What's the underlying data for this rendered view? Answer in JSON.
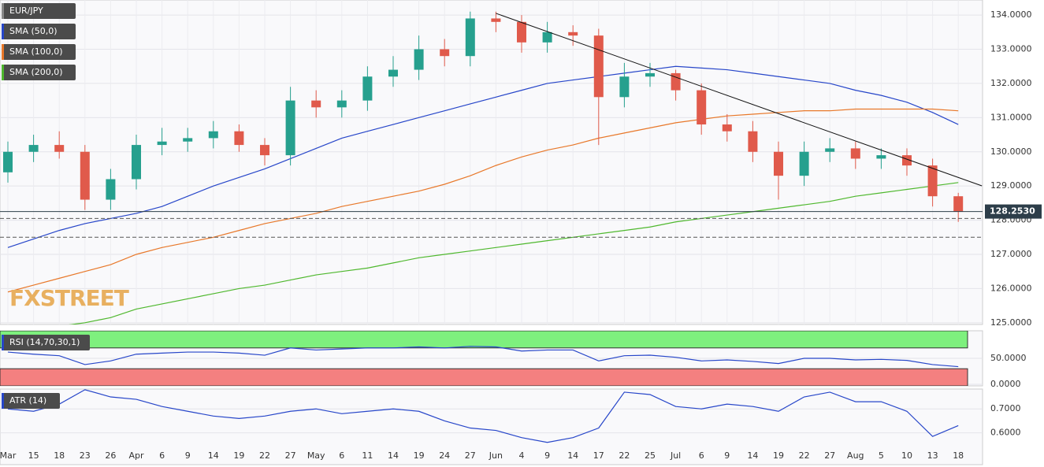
{
  "chart_data": [
    {
      "type": "candlestick",
      "symbol": "EUR/JPY",
      "categories": [
        "Mar",
        "15",
        "18",
        "23",
        "26",
        "Apr",
        "6",
        "9",
        "14",
        "19",
        "22",
        "27",
        "May",
        "6",
        "11",
        "14",
        "19",
        "24",
        "27",
        "Jun",
        "4",
        "9",
        "14",
        "17",
        "22",
        "25",
        "Jul",
        "6",
        "9",
        "14",
        "19",
        "22",
        "27",
        "Aug",
        "5",
        "10",
        "13",
        "18"
      ],
      "open": [
        129.4,
        130.0,
        130.2,
        130.0,
        128.6,
        129.2,
        130.2,
        130.3,
        130.4,
        130.6,
        130.2,
        129.9,
        131.5,
        131.3,
        131.5,
        132.2,
        132.4,
        133.0,
        132.8,
        133.9,
        133.8,
        133.2,
        133.5,
        133.4,
        131.6,
        132.2,
        132.3,
        131.8,
        130.8,
        130.6,
        130.0,
        129.3,
        130.0,
        130.1,
        129.8,
        129.9,
        129.6,
        128.7
      ],
      "high": [
        130.3,
        130.5,
        130.6,
        130.2,
        129.5,
        130.5,
        130.7,
        130.7,
        130.9,
        130.8,
        130.4,
        131.9,
        131.8,
        131.8,
        132.5,
        132.8,
        133.4,
        133.3,
        134.1,
        134.1,
        134.0,
        133.8,
        133.7,
        133.6,
        132.6,
        132.6,
        132.4,
        132.0,
        131.1,
        130.9,
        130.3,
        130.3,
        130.4,
        130.3,
        130.1,
        130.1,
        129.8,
        128.8
      ],
      "low": [
        129.1,
        129.7,
        129.8,
        128.3,
        128.3,
        128.9,
        129.9,
        130.0,
        130.1,
        130.0,
        129.6,
        129.6,
        131.0,
        131.0,
        131.2,
        131.9,
        132.1,
        132.5,
        132.5,
        133.5,
        132.9,
        132.9,
        133.1,
        130.2,
        131.3,
        131.9,
        131.5,
        130.5,
        130.3,
        129.7,
        128.6,
        129.0,
        129.7,
        129.5,
        129.5,
        129.3,
        128.4,
        127.95
      ],
      "close": [
        130.0,
        130.2,
        130.0,
        128.6,
        129.2,
        130.2,
        130.3,
        130.4,
        130.6,
        130.2,
        129.9,
        131.5,
        131.3,
        131.5,
        132.2,
        132.4,
        133.0,
        132.8,
        133.9,
        133.8,
        133.2,
        133.5,
        133.4,
        131.6,
        132.2,
        132.3,
        131.8,
        130.8,
        130.6,
        130.0,
        129.3,
        130.0,
        130.1,
        129.8,
        129.9,
        129.6,
        128.7,
        128.25
      ],
      "up_color": "#26a08e",
      "down_color": "#e05a4b",
      "series": [
        {
          "name": "SMA (50,0)",
          "color": "#2746c9",
          "values": [
            127.2,
            127.45,
            127.7,
            127.9,
            128.05,
            128.2,
            128.4,
            128.7,
            129.0,
            129.25,
            129.5,
            129.8,
            130.1,
            130.4,
            130.6,
            130.8,
            131.0,
            131.2,
            131.4,
            131.6,
            131.8,
            132.0,
            132.1,
            132.2,
            132.3,
            132.4,
            132.5,
            132.45,
            132.4,
            132.3,
            132.2,
            132.1,
            132.0,
            131.8,
            131.65,
            131.45,
            131.15,
            130.8
          ]
        },
        {
          "name": "SMA (100,0)",
          "color": "#e8782a",
          "values": [
            125.9,
            126.1,
            126.3,
            126.5,
            126.7,
            127.0,
            127.2,
            127.35,
            127.5,
            127.7,
            127.9,
            128.05,
            128.2,
            128.4,
            128.55,
            128.7,
            128.85,
            129.05,
            129.3,
            129.6,
            129.85,
            130.05,
            130.2,
            130.4,
            130.55,
            130.7,
            130.85,
            130.95,
            131.05,
            131.1,
            131.15,
            131.2,
            131.2,
            131.25,
            131.25,
            131.25,
            131.25,
            131.2
          ]
        },
        {
          "name": "SMA (200,0)",
          "color": "#4fb82e",
          "values": [
            124.7,
            124.8,
            124.9,
            125.0,
            125.15,
            125.4,
            125.55,
            125.7,
            125.85,
            126.0,
            126.1,
            126.25,
            126.4,
            126.5,
            126.6,
            126.75,
            126.9,
            127.0,
            127.1,
            127.2,
            127.3,
            127.4,
            127.5,
            127.6,
            127.7,
            127.8,
            127.95,
            128.05,
            128.15,
            128.25,
            128.35,
            128.45,
            128.55,
            128.7,
            128.8,
            128.9,
            129.0,
            129.1
          ]
        }
      ],
      "ylim": [
        124.95,
        134.44
      ],
      "yticks": [
        {
          "value": 125,
          "label": "125.0000"
        },
        {
          "value": 126,
          "label": "126.0000"
        },
        {
          "value": 127,
          "label": "127.0000"
        },
        {
          "value": 128,
          "label": "128.0000"
        },
        {
          "value": 129,
          "label": "129.0000"
        },
        {
          "value": 130,
          "label": "130.0000"
        },
        {
          "value": 131,
          "label": "131.0000"
        },
        {
          "value": 132,
          "label": "132.0000"
        },
        {
          "value": 133,
          "label": "133.0000"
        },
        {
          "value": 134,
          "label": "134.0000"
        }
      ],
      "last_price": {
        "value": 128.253,
        "label": "128.2530"
      },
      "levels": [
        128.05,
        127.5
      ],
      "trendline": {
        "x": [
          19,
          37
        ],
        "y": [
          134.05,
          129.25
        ]
      },
      "grid": true,
      "logo": "FXSTREET"
    },
    {
      "type": "line",
      "name": "RSI (14,70,30,1)",
      "color": "#2746c9",
      "values": [
        62,
        58,
        55,
        38,
        45,
        58,
        60,
        62,
        62,
        60,
        56,
        70,
        66,
        68,
        70,
        70,
        72,
        70,
        73,
        72,
        64,
        66,
        66,
        45,
        55,
        56,
        52,
        45,
        47,
        44,
        40,
        50,
        50,
        47,
        48,
        46,
        38,
        34
      ],
      "ylim": [
        -3,
        103
      ],
      "yticks": [
        {
          "value": 50,
          "label": "50.0000"
        },
        {
          "value": 0,
          "label": "0.0000"
        }
      ],
      "overbought": 70,
      "oversold": 30,
      "overbought_color": "#7ef07e",
      "oversold_color": "#f48080",
      "grid": true
    },
    {
      "type": "line",
      "name": "ATR (14)",
      "color": "#2746c9",
      "values": [
        0.7,
        0.69,
        0.72,
        0.78,
        0.75,
        0.74,
        0.71,
        0.69,
        0.67,
        0.66,
        0.67,
        0.69,
        0.7,
        0.68,
        0.69,
        0.7,
        0.69,
        0.65,
        0.62,
        0.61,
        0.58,
        0.56,
        0.58,
        0.62,
        0.77,
        0.76,
        0.71,
        0.7,
        0.72,
        0.71,
        0.69,
        0.75,
        0.77,
        0.73,
        0.73,
        0.69,
        0.585,
        0.63
      ],
      "ylim": [
        0.467,
        0.783
      ],
      "yticks": [
        {
          "value": 0.7,
          "label": "0.7000"
        },
        {
          "value": 0.6,
          "label": "0.6000"
        }
      ],
      "grid": true
    }
  ]
}
